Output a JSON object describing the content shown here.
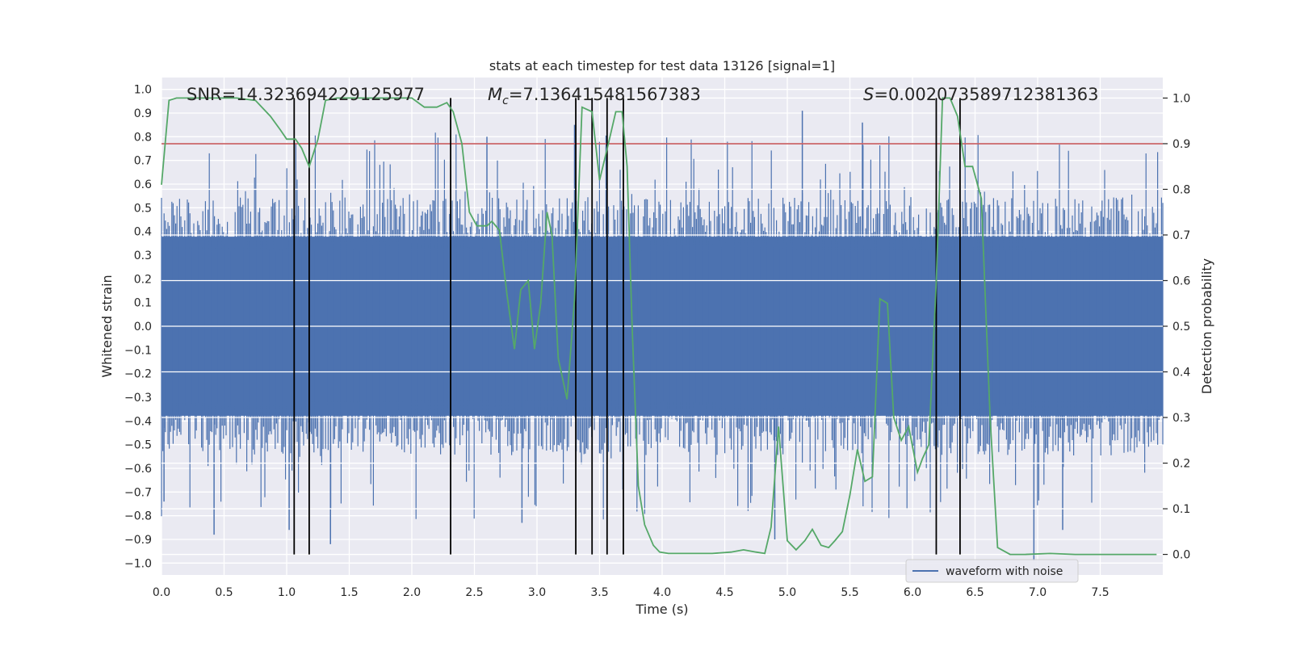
{
  "chart_data": {
    "type": "line",
    "title": "stats at each timestep for test data 13126 [signal=1]",
    "xlabel": "Time (s)",
    "ylabel_left": "Whitened strain",
    "ylabel_right": "Detection probability",
    "xlim": [
      0.0,
      8.0
    ],
    "ylim_left": [
      -1.05,
      1.05
    ],
    "ylim_right": [
      -0.045,
      1.045
    ],
    "x_ticks": [
      0.0,
      0.5,
      1.0,
      1.5,
      2.0,
      2.5,
      3.0,
      3.5,
      4.0,
      4.5,
      5.0,
      5.5,
      6.0,
      6.5,
      7.0,
      7.5
    ],
    "x_tick_labels": [
      "0.0",
      "0.5",
      "1.0",
      "1.5",
      "2.0",
      "2.5",
      "3.0",
      "3.5",
      "4.0",
      "4.5",
      "5.0",
      "5.5",
      "6.0",
      "6.5",
      "7.0",
      "7.5"
    ],
    "y_left_ticks": [
      1.0,
      0.9,
      0.8,
      0.7,
      0.6,
      0.5,
      0.4,
      0.3,
      0.2,
      0.1,
      0.0,
      -0.1,
      -0.2,
      -0.3,
      -0.4,
      -0.5,
      -0.6,
      -0.7,
      -0.8,
      -0.9,
      -1.0
    ],
    "y_left_tick_labels": [
      "1.0",
      "0.9",
      "0.8",
      "0.7",
      "0.6",
      "0.5",
      "0.4",
      "0.3",
      "0.2",
      "0.1",
      "0.0",
      "−0.1",
      "−0.2",
      "−0.3",
      "−0.4",
      "−0.5",
      "−0.6",
      "−0.7",
      "−0.8",
      "−0.9",
      "−1.0"
    ],
    "y_right_ticks": [
      1.0,
      0.9,
      0.8,
      0.7,
      0.6,
      0.5,
      0.4,
      0.3,
      0.2,
      0.1,
      0.0
    ],
    "y_right_tick_labels": [
      "1.0",
      "0.9",
      "0.8",
      "0.7",
      "0.6",
      "0.5",
      "0.4",
      "0.3",
      "0.2",
      "0.1",
      "0.0"
    ],
    "annotations": {
      "snr": "SNR=14.323694229125977",
      "mc_symbol": "M",
      "mc_sub": "c",
      "mc_value": "=7.136415481567383",
      "s_symbol": "S",
      "s_value": "=0.002073589712381363"
    },
    "legend": {
      "label": "waveform with noise",
      "location": "lower-right"
    },
    "series": [
      {
        "name": "waveform with noise",
        "axis": "left",
        "color": "#4c72b0",
        "description": "dense whitened strain noise, core amplitude about ±0.4, spikes to about ±0.9",
        "core_amplitude": 0.42,
        "spikes": [
          {
            "x": 0.42,
            "y": -0.88
          },
          {
            "x": 1.35,
            "y": -0.92
          },
          {
            "x": 2.88,
            "y": -0.83
          },
          {
            "x": 5.12,
            "y": 0.91
          },
          {
            "x": 5.6,
            "y": 0.86
          },
          {
            "x": 6.97,
            "y": -0.99
          },
          {
            "x": 4.9,
            "y": -0.9
          },
          {
            "x": 2.6,
            "y": 0.8
          },
          {
            "x": 3.3,
            "y": 0.85
          },
          {
            "x": 0.02,
            "y": -0.74
          },
          {
            "x": 1.02,
            "y": -0.86
          },
          {
            "x": 7.2,
            "y": -0.86
          }
        ]
      },
      {
        "name": "detection probability",
        "axis": "right",
        "color": "#55a868",
        "x": [
          0.0,
          0.06,
          0.12,
          0.2,
          0.3,
          0.45,
          0.6,
          0.75,
          0.87,
          0.95,
          1.0,
          1.07,
          1.12,
          1.18,
          1.25,
          1.31,
          1.4,
          1.6,
          1.8,
          2.0,
          2.1,
          2.2,
          2.28,
          2.33,
          2.4,
          2.46,
          2.52,
          2.6,
          2.64,
          2.7,
          2.76,
          2.82,
          2.87,
          2.93,
          2.98,
          3.03,
          3.08,
          3.12,
          3.17,
          3.24,
          3.3,
          3.36,
          3.44,
          3.5,
          3.57,
          3.63,
          3.68,
          3.72,
          3.76,
          3.81,
          3.86,
          3.93,
          3.98,
          4.05,
          4.2,
          4.4,
          4.55,
          4.65,
          4.75,
          4.82,
          4.87,
          4.93,
          5.0,
          5.07,
          5.14,
          5.2,
          5.27,
          5.33,
          5.38,
          5.44,
          5.5,
          5.56,
          5.62,
          5.68,
          5.74,
          5.8,
          5.85,
          5.91,
          5.97,
          6.04,
          6.08,
          6.13,
          6.19,
          6.24,
          6.3,
          6.36,
          6.42,
          6.48,
          6.55,
          6.62,
          6.68,
          6.78,
          6.9,
          7.1,
          7.3,
          7.5,
          7.7,
          7.95
        ],
        "y": [
          0.81,
          0.995,
          1.0,
          1.0,
          1.0,
          1.0,
          1.0,
          0.995,
          0.96,
          0.93,
          0.91,
          0.91,
          0.89,
          0.85,
          0.91,
          0.995,
          1.0,
          1.0,
          1.0,
          1.0,
          0.98,
          0.98,
          0.99,
          0.97,
          0.9,
          0.75,
          0.72,
          0.72,
          0.73,
          0.71,
          0.57,
          0.45,
          0.58,
          0.6,
          0.45,
          0.55,
          0.75,
          0.7,
          0.43,
          0.34,
          0.56,
          0.98,
          0.97,
          0.82,
          0.9,
          0.97,
          0.97,
          0.85,
          0.5,
          0.15,
          0.065,
          0.02,
          0.005,
          0.002,
          0.002,
          0.002,
          0.005,
          0.01,
          0.005,
          0.002,
          0.06,
          0.28,
          0.03,
          0.01,
          0.03,
          0.055,
          0.02,
          0.015,
          0.03,
          0.05,
          0.13,
          0.23,
          0.16,
          0.17,
          0.56,
          0.55,
          0.3,
          0.25,
          0.28,
          0.18,
          0.21,
          0.24,
          0.6,
          1.0,
          1.0,
          0.96,
          0.85,
          0.85,
          0.78,
          0.3,
          0.015,
          0.0,
          0.0,
          0.002,
          0.0,
          0.0,
          0.0,
          0.0
        ]
      },
      {
        "name": "threshold",
        "axis": "right",
        "color": "#c44e52",
        "y": 0.9
      }
    ],
    "vertical_markers_x": [
      1.06,
      1.18,
      2.31,
      3.31,
      3.44,
      3.56,
      3.69,
      6.19,
      6.38
    ],
    "grid": true
  }
}
